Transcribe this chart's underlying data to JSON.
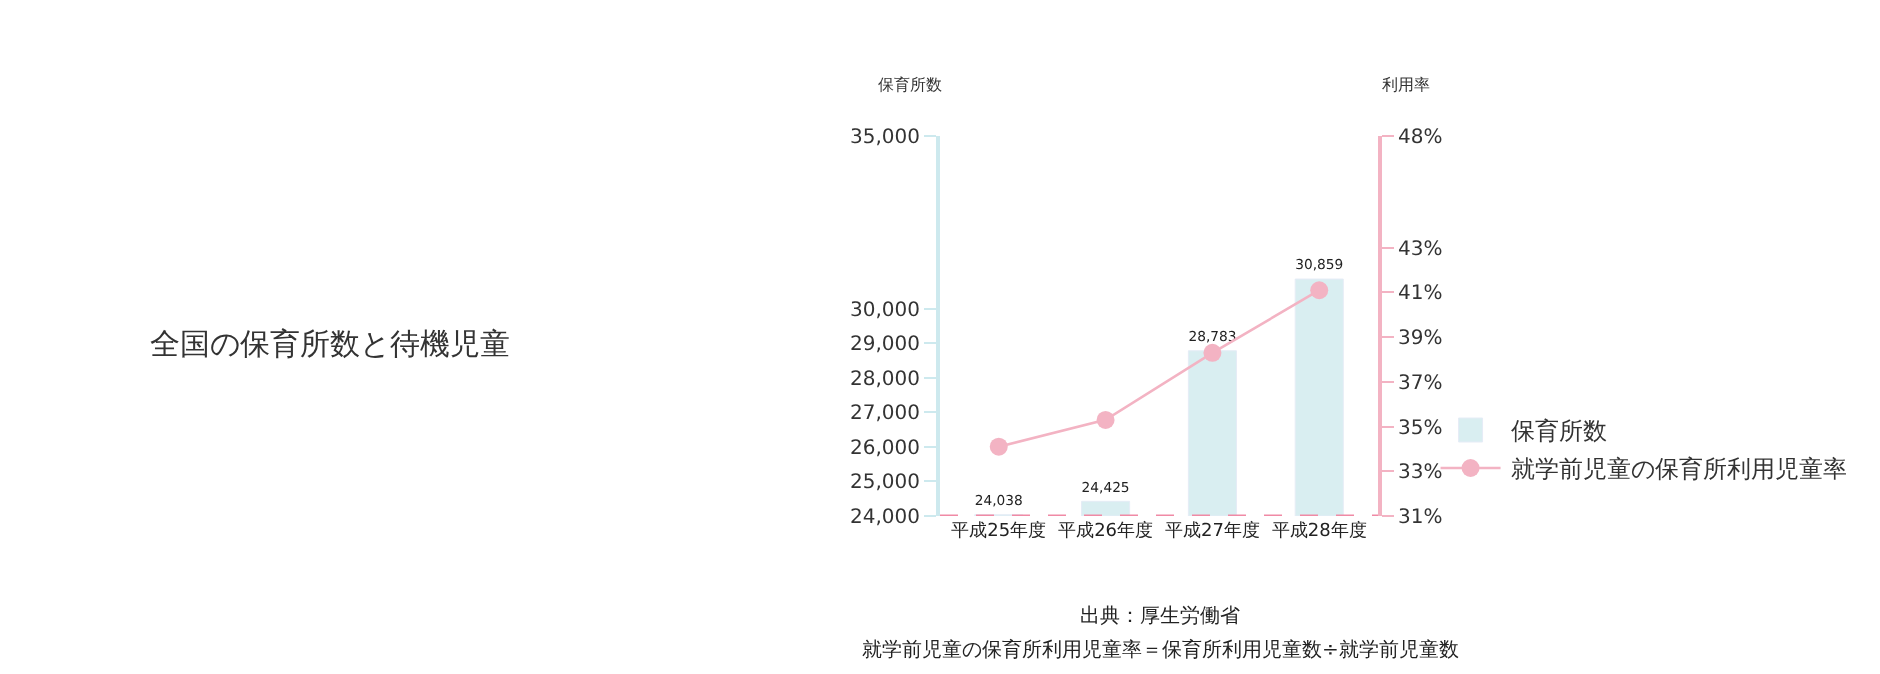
{
  "chart_data": {
    "type": "bar",
    "title": "全国の保育所数と待機児童",
    "ylabel": "保育所数",
    "y2label": "利用率",
    "categories": [
      "平成25年度",
      "平成26年度",
      "平成27年度",
      "平成28年度"
    ],
    "series": [
      {
        "name": "保育所数",
        "color": "#d9eef1",
        "values": [
          24038,
          24425,
          28783,
          30859
        ],
        "value_labels": [
          "24,038",
          "24,425",
          "28,783",
          "30,859"
        ]
      },
      {
        "name": "就学前児童の保育所利用児童率",
        "type": "line",
        "axis": "y2",
        "color": "#f3b3c3",
        "values": [
          34.1,
          35.3,
          38.3,
          41.1
        ]
      }
    ],
    "ylim": [
      24000,
      35000
    ],
    "yticks": [
      {
        "value": 24000,
        "label": "24,000"
      },
      {
        "value": 25000,
        "label": "25,000"
      },
      {
        "value": 26000,
        "label": "26,000"
      },
      {
        "value": 27000,
        "label": "27,000"
      },
      {
        "value": 28000,
        "label": "28,000"
      },
      {
        "value": 29000,
        "label": "29,000"
      },
      {
        "value": 30000,
        "label": "30,000"
      },
      {
        "value": 35000,
        "label": "35,000"
      }
    ],
    "y2lim": [
      31,
      48
    ],
    "y2ticks": [
      {
        "value": 31,
        "label": "31%"
      },
      {
        "value": 33,
        "label": "33%"
      },
      {
        "value": 35,
        "label": "35%"
      },
      {
        "value": 37,
        "label": "37%"
      },
      {
        "value": 39,
        "label": "39%"
      },
      {
        "value": 41,
        "label": "41%"
      },
      {
        "value": 43,
        "label": "43%"
      },
      {
        "value": 48,
        "label": "48%"
      }
    ],
    "ref_lines": [
      {
        "axis": "y",
        "value": 24000,
        "color": "#f08aa5",
        "line_style": "dashed"
      }
    ],
    "annotations": [
      "出典：厚生労働省",
      "就学前児童の保育所利用児童率＝保育所利用児童数÷就学前児童数"
    ],
    "marker": "circle",
    "legend": "bottom right"
  }
}
